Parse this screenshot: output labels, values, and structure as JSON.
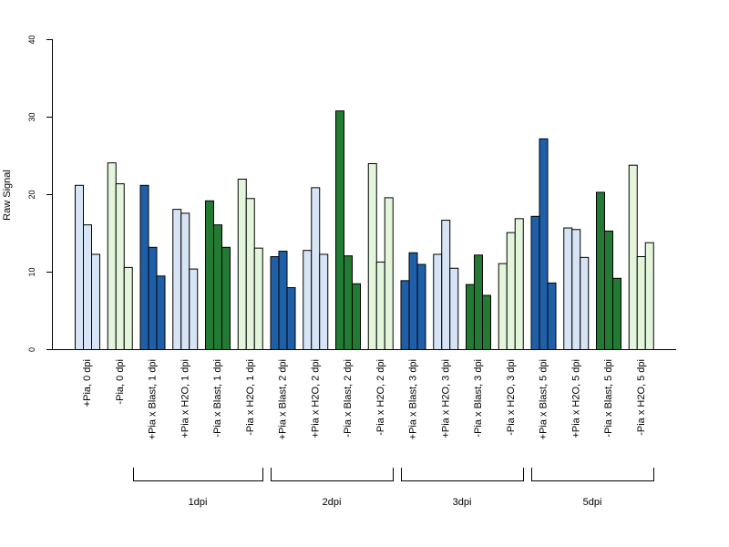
{
  "chart_data": {
    "type": "bar",
    "ylabel": "Raw Signal",
    "ylim": [
      0,
      40
    ],
    "yticks": [
      0,
      10,
      20,
      30,
      40
    ],
    "colors": {
      "light_blue": "#d6e4f5",
      "dark_blue": "#1f5fa8",
      "light_green": "#e3f6dc",
      "dark_green": "#227a33"
    },
    "groups": [
      {
        "label": "+Pia, 0 dpi",
        "color": "light_blue",
        "values": [
          21.2,
          16.1,
          12.3
        ]
      },
      {
        "label": "-Pia, 0 dpi",
        "color": "light_green",
        "values": [
          24.1,
          21.4,
          10.6
        ]
      },
      {
        "label": "+Pia x Blast, 1 dpi",
        "color": "dark_blue",
        "values": [
          21.2,
          13.2,
          9.5
        ]
      },
      {
        "label": "+Pia x H2O, 1 dpi",
        "color": "light_blue",
        "values": [
          18.1,
          17.6,
          10.4
        ]
      },
      {
        "label": "-Pia x Blast, 1 dpi",
        "color": "dark_green",
        "values": [
          19.2,
          16.1,
          13.2
        ]
      },
      {
        "label": "-Pia x H2O, 1 dpi",
        "color": "light_green",
        "values": [
          22.0,
          19.5,
          13.1
        ]
      },
      {
        "label": "+Pia x Blast, 2 dpi",
        "color": "dark_blue",
        "values": [
          12.0,
          12.7,
          8.0
        ]
      },
      {
        "label": "+Pia x H2O, 2 dpi",
        "color": "light_blue",
        "values": [
          12.8,
          20.9,
          12.3
        ]
      },
      {
        "label": "-Pia x Blast, 2 dpi",
        "color": "dark_green",
        "values": [
          30.8,
          12.1,
          8.5
        ]
      },
      {
        "label": "-Pia x H2O, 2 dpi",
        "color": "light_green",
        "values": [
          24.0,
          11.3,
          19.6
        ]
      },
      {
        "label": "+Pia x Blast, 3 dpi",
        "color": "dark_blue",
        "values": [
          8.9,
          12.5,
          11.0
        ]
      },
      {
        "label": "+Pia x H2O, 3 dpi",
        "color": "light_blue",
        "values": [
          12.3,
          16.7,
          10.5
        ]
      },
      {
        "label": "-Pia x Blast, 3 dpi",
        "color": "dark_green",
        "values": [
          8.4,
          12.2,
          7.0
        ]
      },
      {
        "label": "-Pia x H2O, 3 dpi",
        "color": "light_green",
        "values": [
          11.1,
          15.1,
          16.9
        ]
      },
      {
        "label": "+Pia x Blast, 5 dpi",
        "color": "dark_blue",
        "values": [
          17.2,
          27.2,
          8.6
        ]
      },
      {
        "label": "+Pia x H2O, 5 dpi",
        "color": "light_blue",
        "values": [
          15.7,
          15.5,
          11.9
        ]
      },
      {
        "label": "-Pia x Blast, 5 dpi",
        "color": "dark_green",
        "values": [
          20.3,
          15.3,
          9.2
        ]
      },
      {
        "label": "-Pia x H2O, 5 dpi",
        "color": "light_green",
        "values": [
          23.8,
          12.0,
          13.8
        ]
      }
    ],
    "brackets": [
      {
        "label": "1dpi"
      },
      {
        "label": "2dpi"
      },
      {
        "label": "3dpi"
      },
      {
        "label": "5dpi"
      }
    ]
  }
}
